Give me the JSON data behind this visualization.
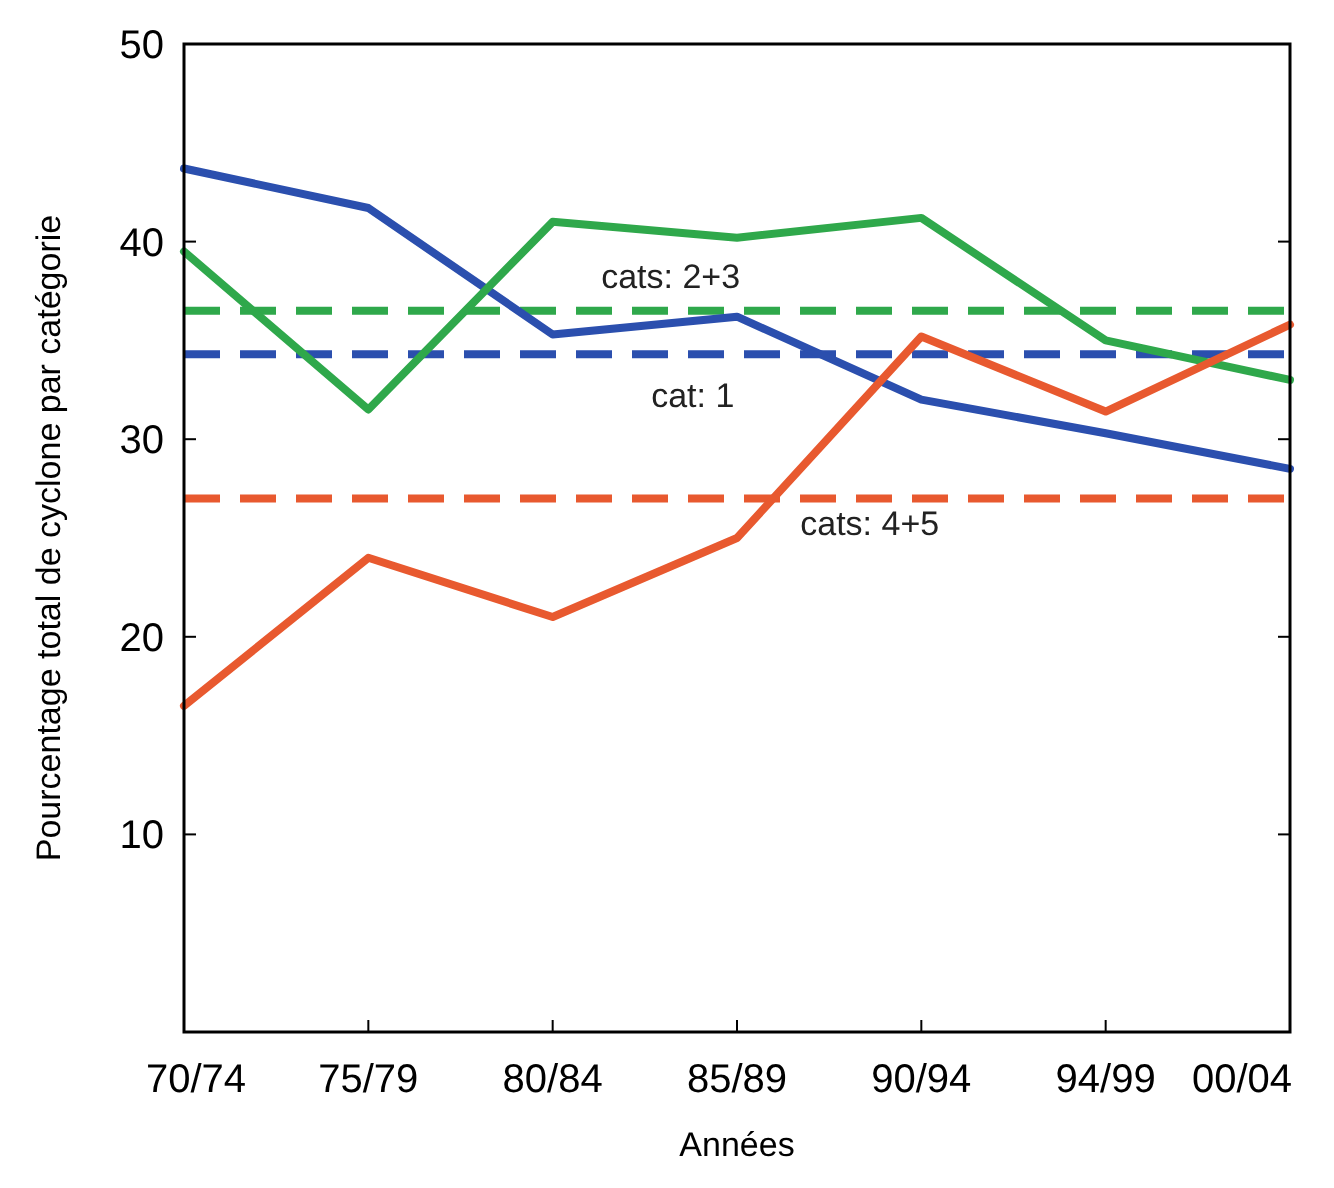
{
  "chart_data": {
    "type": "line",
    "xlabel": "Années",
    "ylabel": "Pourcentage total de cyclone par catégorie",
    "categories": [
      "70/74",
      "75/79",
      "80/84",
      "85/89",
      "90/94",
      "94/99",
      "00/04"
    ],
    "series": [
      {
        "color": "#2b4fae",
        "values": [
          43.7,
          41.7,
          35.3,
          36.2,
          32.0,
          30.3,
          28.5
        ]
      },
      {
        "color": "#2fa84b",
        "values": [
          39.5,
          31.5,
          41.0,
          40.2,
          41.2,
          35.0,
          33.0
        ]
      },
      {
        "color": "#e8592f",
        "values": [
          16.5,
          24.0,
          21.0,
          25.0,
          35.2,
          31.4,
          35.8
        ]
      }
    ],
    "ylim": [
      0,
      50
    ],
    "yticks": [
      10,
      20,
      30,
      40,
      50
    ],
    "grid": false,
    "marker": "none",
    "line_style": "solid",
    "ref_lines": [
      {
        "axis": "y",
        "value": 36.5,
        "color": "#2fa84b",
        "line_style": "dashed"
      },
      {
        "axis": "y",
        "value": 34.3,
        "color": "#2b4fae",
        "line_style": "dashed"
      },
      {
        "axis": "y",
        "value": 27.0,
        "color": "#e8592f",
        "line_style": "dashed"
      }
    ],
    "annotations": [
      "cats: 2+3",
      "cat: 1",
      "cats: 4+5"
    ]
  }
}
